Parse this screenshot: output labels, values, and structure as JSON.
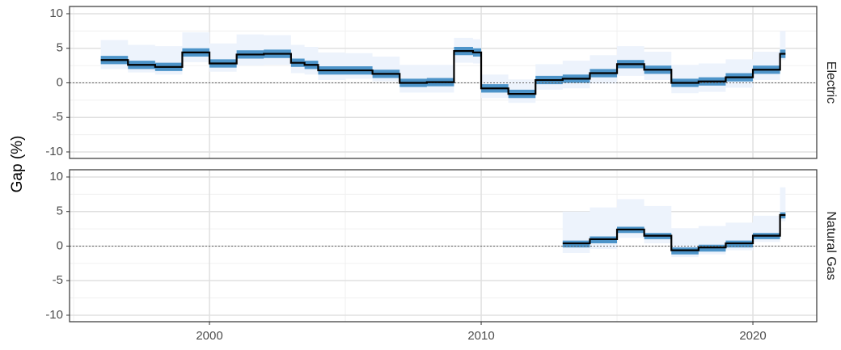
{
  "chart_data": {
    "type": "step",
    "ylabel": "Gap (%)",
    "xlim": [
      1994.85,
      2022.35
    ],
    "xticks": [
      2000,
      2010,
      2020
    ],
    "xticks_minor": [
      1995,
      2005,
      2015
    ],
    "ylim": [
      -10.94,
      11.05
    ],
    "yticks": [
      -10,
      -5,
      0,
      5,
      10
    ],
    "yticks_minor": [
      -7.5,
      -2.5,
      2.5,
      7.5
    ],
    "hline": 0,
    "grid": true,
    "line_color": "#000000",
    "outer_color": "#edf3fc",
    "inner_color": "#4d94c9",
    "panels": [
      {
        "label": "Electric",
        "x": [
          1996,
          1997,
          1998,
          1999,
          2000,
          2001,
          2002,
          2003,
          2003.5,
          2004,
          2005,
          2006,
          2007,
          2008,
          2009,
          2009.7,
          2010,
          2011,
          2012,
          2013,
          2014,
          2015,
          2016,
          2017,
          2018,
          2019,
          2020,
          2021,
          2021.2
        ],
        "values": [
          3.3,
          2.6,
          2.3,
          4.4,
          2.8,
          4.1,
          4.2,
          2.9,
          2.6,
          1.8,
          1.8,
          1.3,
          0.0,
          0.1,
          4.6,
          4.4,
          -0.8,
          -1.6,
          0.4,
          0.6,
          1.4,
          2.7,
          1.9,
          0.0,
          0.2,
          0.8,
          1.9,
          4.2,
          4.2
        ],
        "outer_upper": [
          6.2,
          5.5,
          5.3,
          7.3,
          5.7,
          7.0,
          6.9,
          5.5,
          5.2,
          4.4,
          4.3,
          3.8,
          2.6,
          2.6,
          6.5,
          6.3,
          1.2,
          0.5,
          2.7,
          3.2,
          4.0,
          5.3,
          4.5,
          2.6,
          2.8,
          3.4,
          4.5,
          7.5,
          7.5
        ],
        "outer_lower": [
          2.0,
          1.5,
          1.2,
          3.0,
          1.6,
          2.5,
          2.6,
          1.4,
          1.2,
          0.4,
          0.6,
          0.2,
          -1.4,
          -1.4,
          2.9,
          2.8,
          -2.2,
          -2.9,
          -1.0,
          -0.8,
          -0.1,
          1.0,
          0.4,
          -1.5,
          -1.3,
          -0.7,
          0.4,
          3.3,
          3.3
        ],
        "inner_upper": [
          3.9,
          3.2,
          2.9,
          5.0,
          3.4,
          4.7,
          4.8,
          3.5,
          3.2,
          2.4,
          2.4,
          1.9,
          0.6,
          0.7,
          5.2,
          5.0,
          -0.2,
          -1.0,
          1.0,
          1.2,
          2.0,
          3.3,
          2.5,
          0.6,
          0.8,
          1.4,
          2.5,
          4.8,
          4.8
        ],
        "inner_lower": [
          2.7,
          2.0,
          1.7,
          3.8,
          2.2,
          3.5,
          3.6,
          2.3,
          2.0,
          1.2,
          1.2,
          0.7,
          -0.6,
          -0.5,
          4.0,
          3.8,
          -1.4,
          -2.2,
          -0.2,
          0.0,
          0.8,
          2.1,
          1.3,
          -0.6,
          -0.4,
          0.2,
          1.3,
          3.6,
          3.6
        ]
      },
      {
        "label": "Natural Gas",
        "x": [
          2013,
          2014,
          2015,
          2016,
          2017,
          2018,
          2019,
          2020,
          2021,
          2021.2
        ],
        "values": [
          0.4,
          1.0,
          2.4,
          1.5,
          -0.6,
          -0.2,
          0.4,
          1.5,
          4.5,
          4.5
        ],
        "outer_upper": [
          5.0,
          5.6,
          6.8,
          5.8,
          2.6,
          2.9,
          3.4,
          4.4,
          8.5,
          8.5
        ],
        "outer_lower": [
          -1.0,
          -0.4,
          1.2,
          0.4,
          -1.6,
          -1.2,
          -0.6,
          0.6,
          3.6,
          3.6
        ],
        "inner_upper": [
          0.8,
          1.4,
          2.8,
          1.9,
          -0.2,
          0.2,
          0.8,
          1.9,
          4.9,
          4.9
        ],
        "inner_lower": [
          -0.2,
          0.4,
          1.9,
          1.0,
          -1.2,
          -0.8,
          -0.2,
          1.0,
          4.0,
          4.0
        ]
      }
    ]
  }
}
